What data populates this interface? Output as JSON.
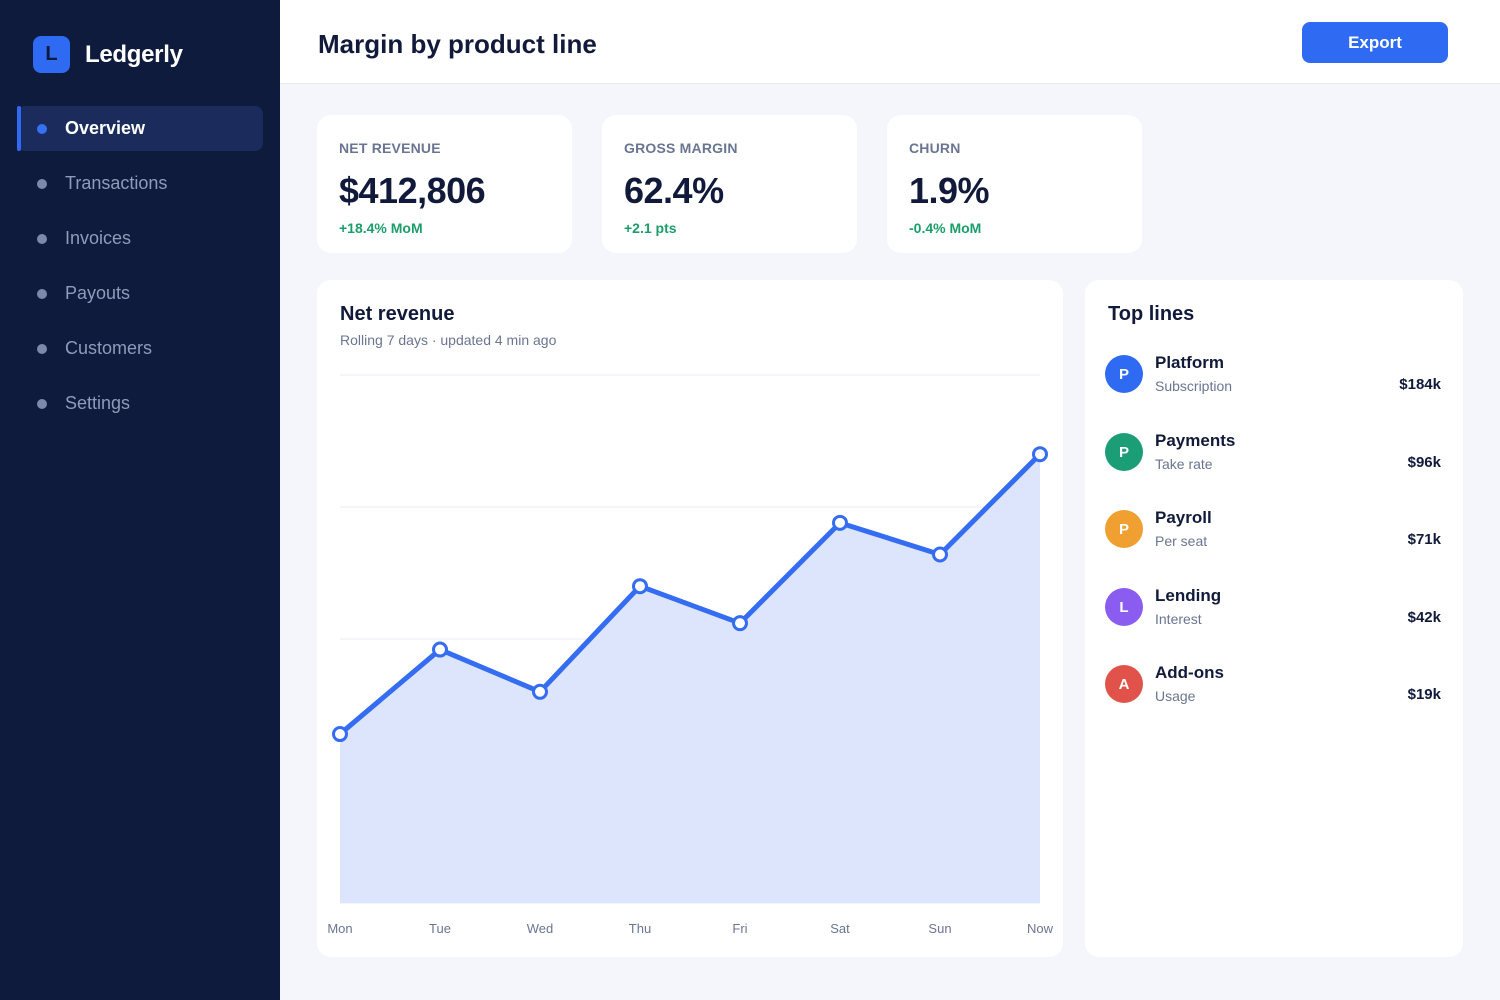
{
  "brand": {
    "logo_letter": "L",
    "name": "Ledgerly"
  },
  "sidebar": {
    "items": [
      {
        "label": "Overview",
        "active": true
      },
      {
        "label": "Transactions",
        "active": false
      },
      {
        "label": "Invoices",
        "active": false
      },
      {
        "label": "Payouts",
        "active": false
      },
      {
        "label": "Customers",
        "active": false
      },
      {
        "label": "Settings",
        "active": false
      }
    ]
  },
  "header": {
    "title": "Margin by product line",
    "export_label": "Export"
  },
  "kpis": [
    {
      "label": "NET REVENUE",
      "value": "$412,806",
      "delta": "+18.4% MoM"
    },
    {
      "label": "GROSS MARGIN",
      "value": "62.4%",
      "delta": "+2.1 pts"
    },
    {
      "label": "CHURN",
      "value": "1.9%",
      "delta": "-0.4% MoM"
    }
  ],
  "chart": {
    "title": "Net revenue",
    "subtitle": "Rolling 7 days · updated 4 min ago"
  },
  "chart_data": {
    "type": "area",
    "categories": [
      "Mon",
      "Tue",
      "Wed",
      "Thu",
      "Fri",
      "Sat",
      "Sun",
      "Now"
    ],
    "values": [
      32,
      48,
      40,
      60,
      53,
      72,
      66,
      85
    ],
    "ylim": [
      0,
      100
    ],
    "grid": true,
    "line_color": "#346cf2",
    "fill_color": "#dde5fc"
  },
  "top_lines": {
    "title": "Top lines",
    "items": [
      {
        "initial": "P",
        "name": "Platform",
        "sub": "Subscription",
        "value": "$184k",
        "color": "#2f6bf2"
      },
      {
        "initial": "P",
        "name": "Payments",
        "sub": "Take rate",
        "value": "$96k",
        "color": "#1b9e75"
      },
      {
        "initial": "P",
        "name": "Payroll",
        "sub": "Per seat",
        "value": "$71k",
        "color": "#f0a030"
      },
      {
        "initial": "L",
        "name": "Lending",
        "sub": "Interest",
        "value": "$42k",
        "color": "#8b5cf0"
      },
      {
        "initial": "A",
        "name": "Add-ons",
        "sub": "Usage",
        "value": "$19k",
        "color": "#e0524a"
      }
    ]
  }
}
